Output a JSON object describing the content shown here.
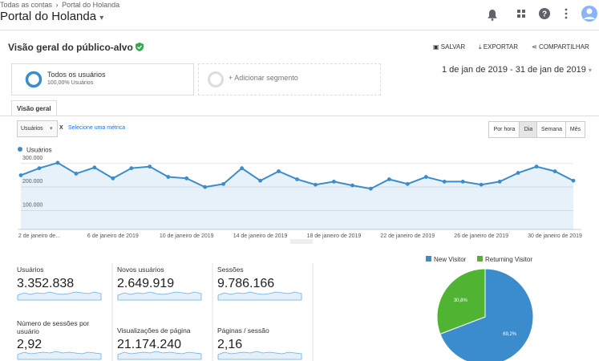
{
  "header": {
    "breadcrumb": [
      "Todas as contas",
      "Portal do Holanda"
    ],
    "property": "Portal do Holanda"
  },
  "report": {
    "title": "Visão geral do público-alvo",
    "actions": [
      "SALVAR",
      "EXPORTAR",
      "COMPARTILHAR"
    ]
  },
  "segments": {
    "active": {
      "name": "Todos os usuários",
      "detail": "100,00% Usuários"
    },
    "add": "+ Adicionar segmento"
  },
  "date_range": "1 de jan de 2019 - 31 de jan de 2019",
  "tabs": [
    "Visão geral"
  ],
  "metric_selector": {
    "metric": "Usuários",
    "remove": "X",
    "add": "Selecione uma métrica"
  },
  "granularity": [
    "Por hora",
    "Dia",
    "Semana",
    "Mês"
  ],
  "metrics": [
    {
      "label": "Usuários",
      "value": "3.352.838"
    },
    {
      "label": "Novos usuários",
      "value": "2.649.919"
    },
    {
      "label": "Sessões",
      "value": "9.786.166"
    },
    {
      "label": "Número de sessões por usuário",
      "value": "2,92"
    },
    {
      "label": "Visualizações de página",
      "value": "21.174.240"
    },
    {
      "label": "Páginas / sessão",
      "value": "2,16"
    }
  ],
  "chart_data": [
    {
      "type": "line",
      "categories": [
        null,
        "2 de janeiro de...",
        null,
        null,
        null,
        "6 de janeiro de 2019",
        null,
        null,
        null,
        "10 de janeiro de 2019",
        null,
        null,
        null,
        "14 de janeiro de 2019",
        null,
        null,
        null,
        "18 de janeiro de 2019",
        null,
        null,
        null,
        "22 de janeiro de 2019",
        null,
        null,
        null,
        "26 de janeiro de 2019",
        null,
        null,
        null,
        "30 de janeiro de 2019",
        null
      ],
      "series": [
        {
          "name": "Usuários",
          "color": "#3a8ccc",
          "values": [
            250000,
            280000,
            303000,
            257000,
            283000,
            237000,
            280000,
            287000,
            243000,
            237000,
            200000,
            213000,
            280000,
            227000,
            267000,
            233000,
            210000,
            223000,
            207000,
            193000,
            233000,
            213000,
            243000,
            223000,
            223000,
            210000,
            223000,
            260000,
            287000,
            267000,
            227000
          ]
        }
      ],
      "ylim": [
        20000,
        330000
      ],
      "yticks": [
        {
          "value": 100000,
          "label": "100.000"
        },
        {
          "value": 200000,
          "label": "200.000"
        },
        {
          "value": 300000,
          "label": "300.000"
        }
      ],
      "grid": true
    },
    {
      "type": "pie",
      "categories": [
        "New Visitor",
        "Returning Visitor"
      ],
      "values": [
        69.2,
        30.8
      ],
      "value_labels": [
        "69,2%",
        "30,8%"
      ],
      "colors": [
        "#3a8ccc",
        "#50b432"
      ]
    }
  ]
}
